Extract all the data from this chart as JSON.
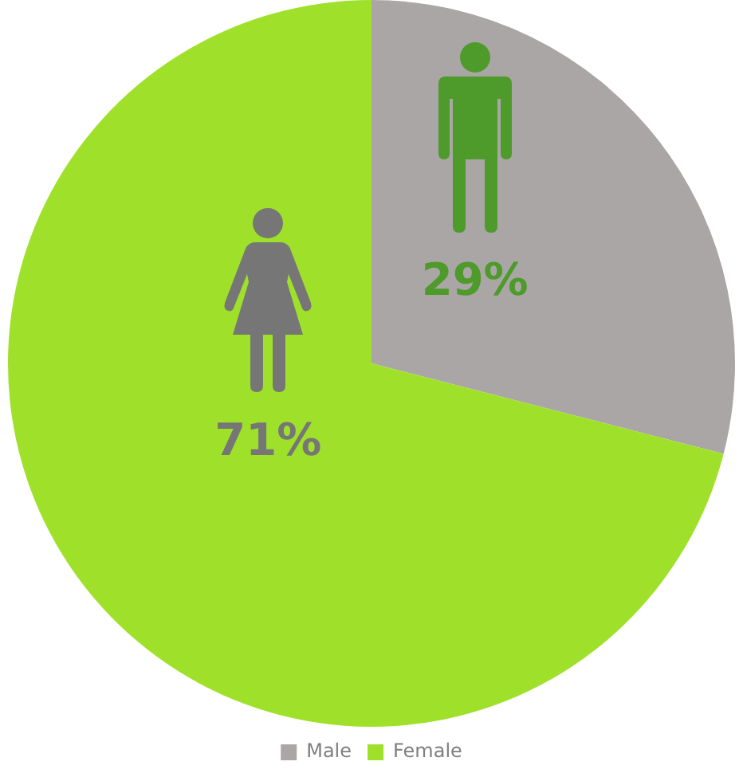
{
  "chart_data": {
    "type": "pie",
    "categories": [
      "Male",
      "Female"
    ],
    "values": [
      29,
      71
    ],
    "colors": [
      "#aaa6a5",
      "#9fe12a"
    ],
    "value_labels": [
      "29%",
      "71%"
    ],
    "legend": "bottom"
  }
}
